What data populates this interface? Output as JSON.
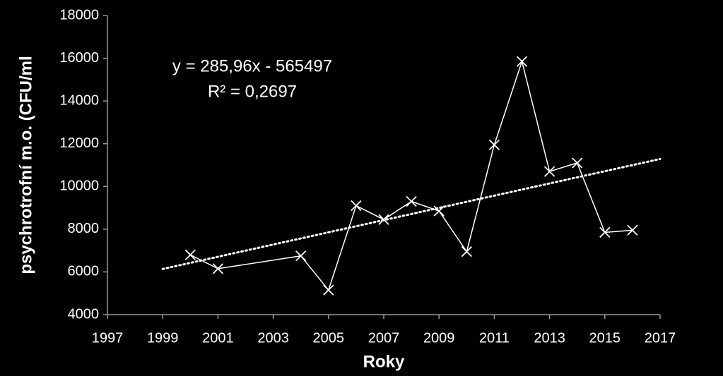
{
  "chart_data": {
    "type": "line",
    "x_label": "Roky",
    "y_label": "psychrotrofní m.o. (CFU/ml",
    "x": [
      2000,
      2001,
      2004,
      2005,
      2006,
      2007,
      2008,
      2009,
      2010,
      2011,
      2012,
      2013,
      2014,
      2015,
      2016
    ],
    "series": [
      {
        "color": "#ffffff",
        "values": [
          6800,
          6150,
          6750,
          5150,
          9100,
          8450,
          9300,
          8850,
          6950,
          11950,
          15850,
          10700,
          11100,
          7850,
          7950
        ]
      }
    ],
    "trendline": {
      "x": [
        1999,
        2017
      ],
      "values": [
        6137,
        11284
      ],
      "color": "#ffffff",
      "equation": "y = 285,96x - 565497",
      "r_squared": "R² = 0,2697"
    },
    "xlim": [
      1997,
      2017
    ],
    "xticks": [
      1997,
      1999,
      2001,
      2003,
      2005,
      2007,
      2009,
      2011,
      2013,
      2015,
      2017
    ],
    "ylim": [
      4000,
      18000
    ],
    "yticks": [
      4000,
      6000,
      8000,
      10000,
      12000,
      14000,
      16000,
      18000
    ],
    "grid": false
  }
}
